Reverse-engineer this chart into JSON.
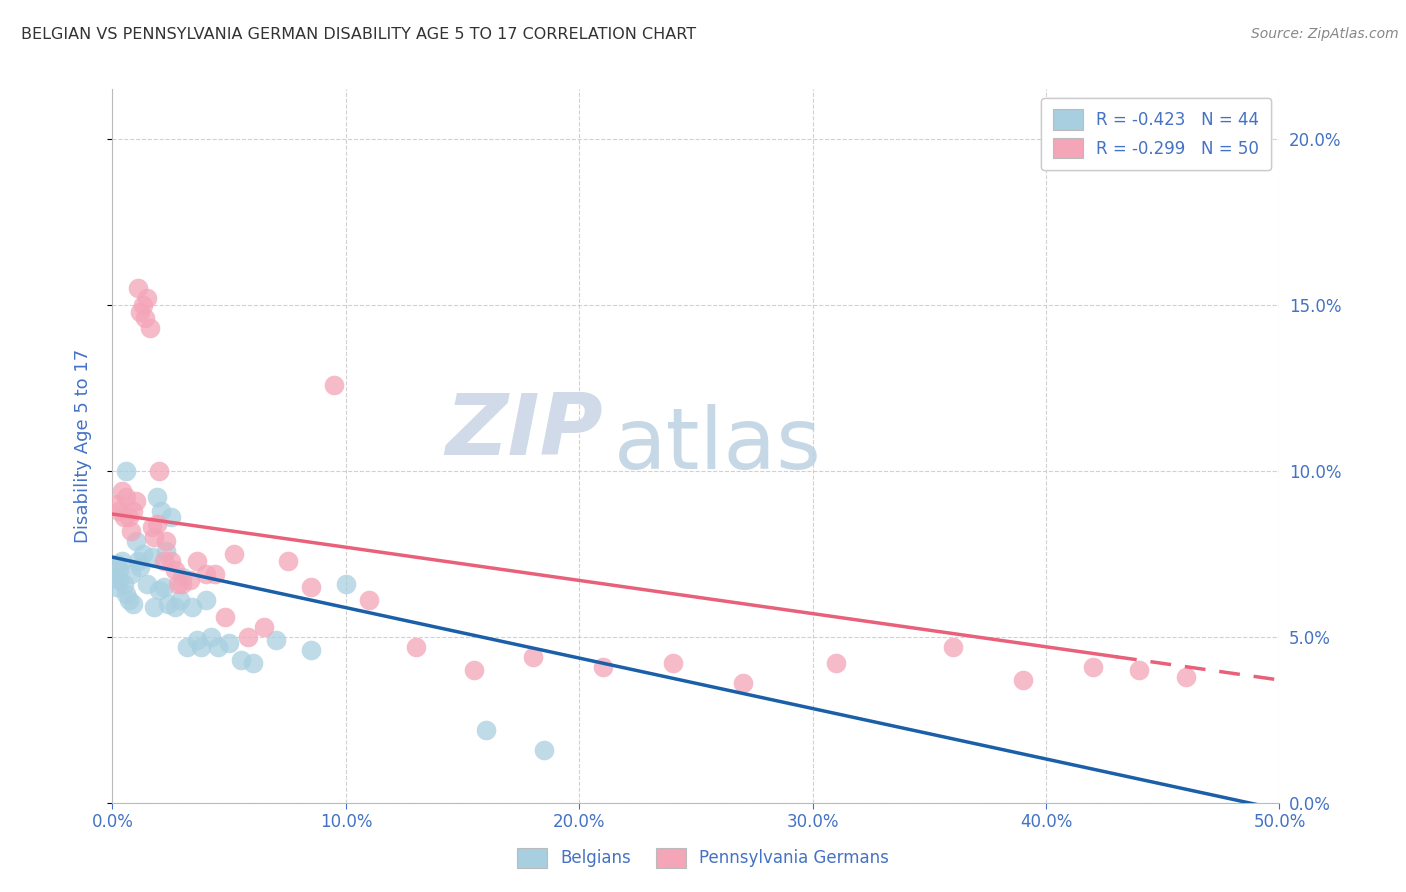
{
  "title": "BELGIAN VS PENNSYLVANIA GERMAN DISABILITY AGE 5 TO 17 CORRELATION CHART",
  "source": "Source: ZipAtlas.com",
  "ylabel": "Disability Age 5 to 17",
  "xlim": [
    0.0,
    0.5
  ],
  "ylim": [
    0.0,
    0.215
  ],
  "xticks": [
    0.0,
    0.1,
    0.2,
    0.3,
    0.4,
    0.5
  ],
  "xticklabels": [
    "0.0%",
    "10.0%",
    "20.0%",
    "30.0%",
    "40.0%",
    "50.0%"
  ],
  "yticks": [
    0.0,
    0.05,
    0.1,
    0.15,
    0.2
  ],
  "yticklabels": [
    "0.0%",
    "5.0%",
    "10.0%",
    "15.0%",
    "20.0%"
  ],
  "legend_r1": "R = -0.423",
  "legend_n1": "N = 44",
  "legend_r2": "R = -0.299",
  "legend_n2": "N = 50",
  "color_belgian": "#a8cfe0",
  "color_pa_german": "#f4a5b8",
  "color_line_belgian": "#1a5fa8",
  "color_line_pa_german": "#e8607a",
  "watermark_zip": "ZIP",
  "watermark_atlas": "atlas",
  "background_color": "#ffffff",
  "grid_color": "#cccccc",
  "title_color": "#333333",
  "tick_color": "#4472c4",
  "belgians_x": [
    0.001,
    0.002,
    0.002,
    0.003,
    0.003,
    0.004,
    0.005,
    0.006,
    0.006,
    0.007,
    0.008,
    0.009,
    0.01,
    0.011,
    0.012,
    0.013,
    0.015,
    0.017,
    0.018,
    0.019,
    0.02,
    0.021,
    0.022,
    0.023,
    0.024,
    0.025,
    0.027,
    0.029,
    0.03,
    0.032,
    0.034,
    0.036,
    0.038,
    0.04,
    0.042,
    0.045,
    0.05,
    0.055,
    0.06,
    0.07,
    0.085,
    0.1,
    0.16,
    0.185
  ],
  "belgians_y": [
    0.068,
    0.065,
    0.072,
    0.07,
    0.067,
    0.073,
    0.066,
    0.063,
    0.1,
    0.061,
    0.069,
    0.06,
    0.079,
    0.073,
    0.071,
    0.075,
    0.066,
    0.074,
    0.059,
    0.092,
    0.064,
    0.088,
    0.065,
    0.076,
    0.06,
    0.086,
    0.059,
    0.061,
    0.068,
    0.047,
    0.059,
    0.049,
    0.047,
    0.061,
    0.05,
    0.047,
    0.048,
    0.043,
    0.042,
    0.049,
    0.046,
    0.066,
    0.022,
    0.016
  ],
  "pa_german_x": [
    0.002,
    0.003,
    0.004,
    0.005,
    0.006,
    0.007,
    0.008,
    0.009,
    0.01,
    0.011,
    0.012,
    0.013,
    0.014,
    0.015,
    0.016,
    0.017,
    0.018,
    0.019,
    0.02,
    0.022,
    0.023,
    0.025,
    0.027,
    0.028,
    0.03,
    0.033,
    0.036,
    0.04,
    0.044,
    0.048,
    0.052,
    0.058,
    0.065,
    0.075,
    0.085,
    0.095,
    0.11,
    0.13,
    0.155,
    0.18,
    0.21,
    0.24,
    0.27,
    0.31,
    0.36,
    0.39,
    0.42,
    0.44,
    0.46,
    0.48
  ],
  "pa_german_y": [
    0.09,
    0.088,
    0.094,
    0.086,
    0.092,
    0.086,
    0.082,
    0.088,
    0.091,
    0.155,
    0.148,
    0.15,
    0.146,
    0.152,
    0.143,
    0.083,
    0.08,
    0.084,
    0.1,
    0.073,
    0.079,
    0.073,
    0.07,
    0.066,
    0.066,
    0.067,
    0.073,
    0.069,
    0.069,
    0.056,
    0.075,
    0.05,
    0.053,
    0.073,
    0.065,
    0.126,
    0.061,
    0.047,
    0.04,
    0.044,
    0.041,
    0.042,
    0.036,
    0.042,
    0.047,
    0.037,
    0.041,
    0.04,
    0.038,
    0.203
  ],
  "trendline_belgian_x0": 0.0,
  "trendline_belgian_y0": 0.074,
  "trendline_belgian_x1": 0.5,
  "trendline_belgian_y1": -0.002,
  "trendline_pag_x0": 0.0,
  "trendline_pag_y0": 0.087,
  "trendline_pag_solid_x1": 0.43,
  "trendline_pag_x1": 0.5,
  "trendline_pag_y1": 0.037
}
